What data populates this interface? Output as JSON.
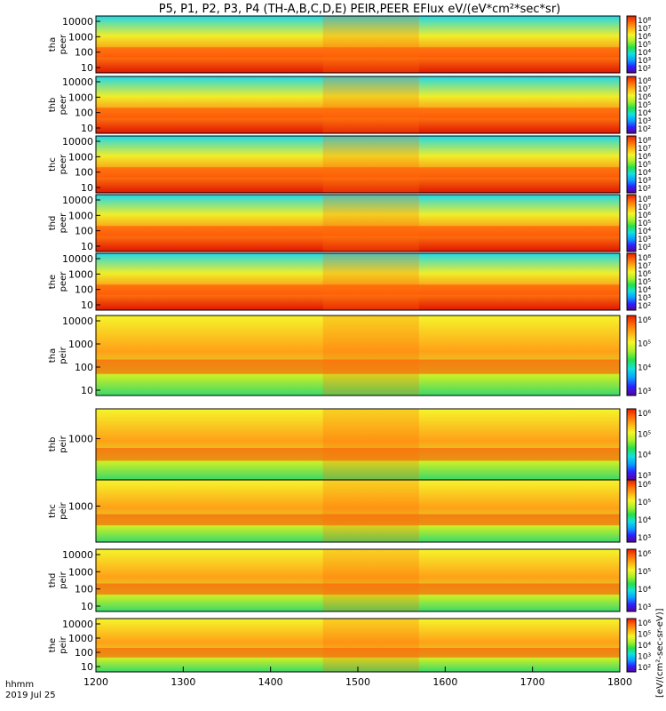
{
  "title": "P5, P1, P2, P3, P4 (TH-A,B,C,D,E) PEIR,PEER EFlux eV/(eV*cm²*sec*sr)",
  "footer": {
    "line1": "hhmm",
    "line2": "2019 Jul 25"
  },
  "colorbar_label": "[eV/(cm²-sec-sr-eV)]",
  "colorscale": [
    "#5a009e",
    "#2a23ff",
    "#0aa0ff",
    "#12e0e0",
    "#26e04a",
    "#a8f02a",
    "#f5f52a",
    "#ffb316",
    "#ff6a08",
    "#e81e00"
  ],
  "chart_data": {
    "type": "heatmap",
    "x_axis": {
      "ticks": [
        "1200",
        "1300",
        "1400",
        "1500",
        "1600",
        "1700",
        "1800"
      ],
      "range": [
        1200,
        1800
      ]
    },
    "panels": [
      {
        "probe": "tha",
        "species": "peer",
        "y_label_top": "tha",
        "y_label_bottom": "peer",
        "y_ticks": [
          "10000",
          "1000",
          "100",
          "10"
        ],
        "cb_ticks": [
          "10⁸",
          "10⁷",
          "10⁶",
          "10⁵",
          "10⁴",
          "10³",
          "10²"
        ]
      },
      {
        "probe": "thb",
        "species": "peer",
        "y_label_top": "thb",
        "y_label_bottom": "peer",
        "y_ticks": [
          "10000",
          "1000",
          "100",
          "10"
        ],
        "cb_ticks": [
          "10⁸",
          "10⁷",
          "10⁶",
          "10⁵",
          "10⁴",
          "10³",
          "10²"
        ]
      },
      {
        "probe": "thc",
        "species": "peer",
        "y_label_top": "thc",
        "y_label_bottom": "peer",
        "y_ticks": [
          "10000",
          "1000",
          "100",
          "10"
        ],
        "cb_ticks": [
          "10⁸",
          "10⁷",
          "10⁶",
          "10⁵",
          "10⁴",
          "10³",
          "10²"
        ]
      },
      {
        "probe": "thd",
        "species": "peer",
        "y_label_top": "thd",
        "y_label_bottom": "peer",
        "y_ticks": [
          "10000",
          "1000",
          "100",
          "10"
        ],
        "cb_ticks": [
          "10⁸",
          "10⁷",
          "10⁶",
          "10⁵",
          "10⁴",
          "10³",
          "10²"
        ]
      },
      {
        "probe": "the",
        "species": "peer",
        "y_label_top": "the",
        "y_label_bottom": "peer",
        "y_ticks": [
          "10000",
          "1000",
          "100",
          "10"
        ],
        "cb_ticks": [
          "10⁸",
          "10⁷",
          "10⁶",
          "10⁵",
          "10⁴",
          "10³",
          "10²"
        ]
      },
      {
        "probe": "tha",
        "species": "peir",
        "y_label_top": "tha",
        "y_label_bottom": "peir",
        "y_ticks": [
          "10000",
          "1000",
          "100",
          "10"
        ],
        "cb_ticks": [
          "10⁶",
          "10⁵",
          "10⁴",
          "10³"
        ]
      },
      {
        "probe": "thb",
        "species": "peir",
        "y_label_top": "thb",
        "y_label_bottom": "peir",
        "y_ticks": [
          "1000"
        ],
        "cb_ticks": [
          "10⁶",
          "10⁵",
          "10⁴",
          "10³"
        ]
      },
      {
        "probe": "thc",
        "species": "peir",
        "y_label_top": "thc",
        "y_label_bottom": "peir",
        "y_ticks": [
          "1000"
        ],
        "cb_ticks": [
          "10⁶",
          "10⁵",
          "10⁴",
          "10³"
        ]
      },
      {
        "probe": "thd",
        "species": "peir",
        "y_label_top": "thd",
        "y_label_bottom": "peir",
        "y_ticks": [
          "10000",
          "1000",
          "100",
          "10"
        ],
        "cb_ticks": [
          "10⁶",
          "10⁵",
          "10⁴",
          "10³"
        ]
      },
      {
        "probe": "the",
        "species": "peir",
        "y_label_top": "the",
        "y_label_bottom": "peir",
        "y_ticks": [
          "10000",
          "1000",
          "100",
          "10"
        ],
        "cb_ticks": [
          "10⁶",
          "10⁵",
          "10⁴",
          "10³",
          "10²"
        ]
      }
    ]
  }
}
